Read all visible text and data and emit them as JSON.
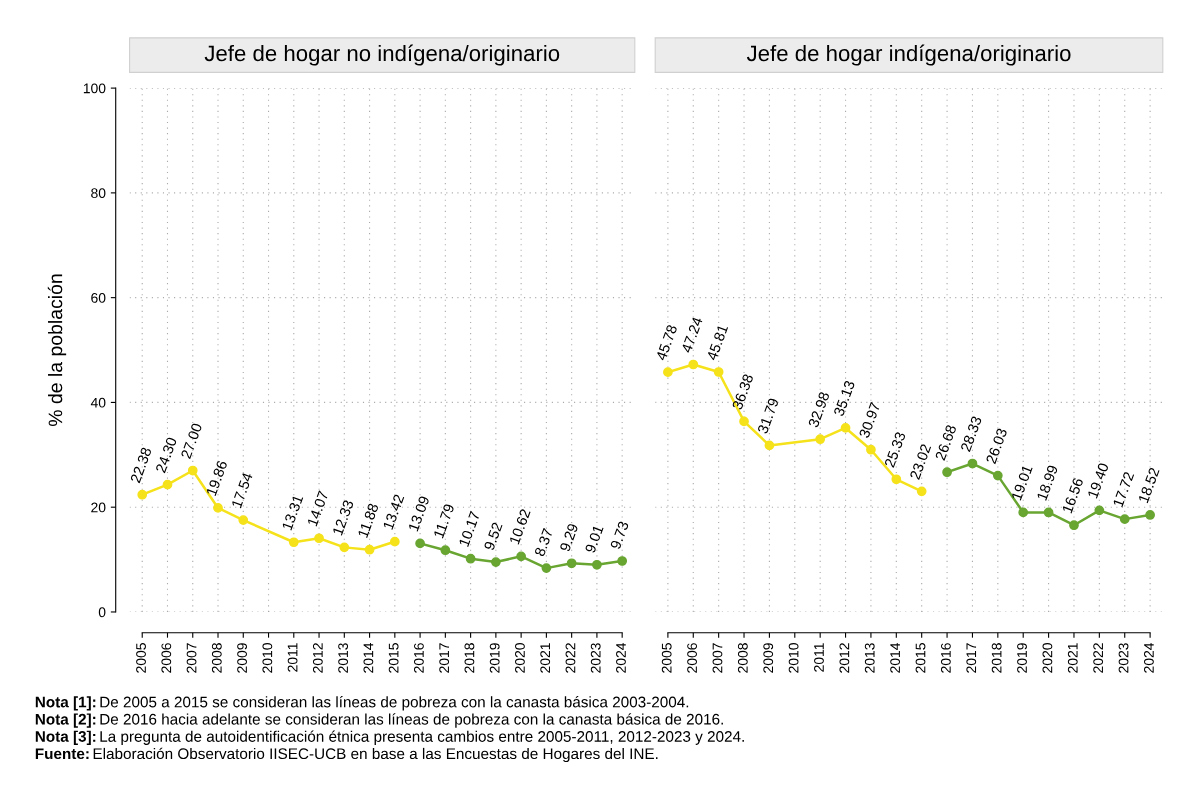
{
  "chart_data": [
    {
      "type": "line",
      "title": "Jefe de hogar no indígena/originario",
      "ylabel": "% de la población",
      "xlim": [
        2004.5,
        2024.5
      ],
      "ylim": [
        0,
        100
      ],
      "xticks": [
        2005,
        2006,
        2007,
        2008,
        2009,
        2010,
        2011,
        2012,
        2013,
        2014,
        2015,
        2016,
        2017,
        2018,
        2019,
        2020,
        2021,
        2022,
        2023,
        2024
      ],
      "yticks": [
        0,
        20,
        40,
        60,
        80,
        100
      ],
      "grid": true,
      "marker": "circle",
      "line_style": "solid",
      "series": [
        {
          "color": "#f5e21b",
          "x": [
            2005,
            2006,
            2007,
            2008,
            2009,
            2011,
            2012,
            2013,
            2014,
            2015
          ],
          "values": [
            22.38,
            24.3,
            27.0,
            19.86,
            17.54,
            13.31,
            14.07,
            12.33,
            11.88,
            13.42
          ],
          "value_labels": [
            "22.38",
            "24.30",
            "27.00",
            "19.86",
            "17.54",
            "13.31",
            "14.07",
            "12.33",
            "11.88",
            "13.42"
          ]
        },
        {
          "color": "#68a531",
          "x": [
            2016,
            2017,
            2018,
            2019,
            2020,
            2021,
            2022,
            2023,
            2024
          ],
          "values": [
            13.09,
            11.79,
            10.17,
            9.52,
            10.62,
            8.37,
            9.29,
            9.01,
            9.73
          ],
          "value_labels": [
            "13.09",
            "11.79",
            "10.17",
            "9.52",
            "10.62",
            "8.37",
            "9.29",
            "9.01",
            "9.73"
          ]
        }
      ],
      "annotations": [
        "Nota [1]: De 2005 a 2015 se consideran las líneas de pobreza con la canasta básica 2003-2004.",
        "Nota [2]: De 2016 hacia adelante se consideran las líneas de pobreza con la canasta básica de 2016.",
        "Nota [3]: La pregunta de autoidentificación étnica presenta cambios entre 2005-2011, 2012-2023 y 2024.",
        "Fuente: Elaboración Observatorio IISEC-UCB en base a las Encuestas de Hogares del INE."
      ]
    },
    {
      "type": "line",
      "title": "Jefe de hogar indígena/originario",
      "xlim": [
        2004.5,
        2024.5
      ],
      "ylim": [
        0,
        100
      ],
      "xticks": [
        2005,
        2006,
        2007,
        2008,
        2009,
        2010,
        2011,
        2012,
        2013,
        2014,
        2015,
        2016,
        2017,
        2018,
        2019,
        2020,
        2021,
        2022,
        2023,
        2024
      ],
      "yticks": [
        0,
        20,
        40,
        60,
        80,
        100
      ],
      "grid": true,
      "marker": "circle",
      "line_style": "solid",
      "tick_labels": "x",
      "series": [
        {
          "color": "#f5e21b",
          "x": [
            2005,
            2006,
            2007,
            2008,
            2009,
            2011,
            2012,
            2013,
            2014,
            2015
          ],
          "values": [
            45.78,
            47.24,
            45.81,
            36.38,
            31.79,
            32.98,
            35.13,
            30.97,
            25.33,
            23.02
          ],
          "value_labels": [
            "45.78",
            "47.24",
            "45.81",
            "36.38",
            "31.79",
            "32.98",
            "35.13",
            "30.97",
            "25.33",
            "23.02"
          ]
        },
        {
          "color": "#68a531",
          "x": [
            2016,
            2017,
            2018,
            2019,
            2020,
            2021,
            2022,
            2023,
            2024
          ],
          "values": [
            26.68,
            28.33,
            26.03,
            19.01,
            18.99,
            16.56,
            19.4,
            17.72,
            18.52
          ],
          "value_labels": [
            "26.68",
            "28.33",
            "26.03",
            "19.01",
            "18.99",
            "16.56",
            "19.40",
            "17.72",
            "18.52"
          ]
        }
      ]
    }
  ]
}
